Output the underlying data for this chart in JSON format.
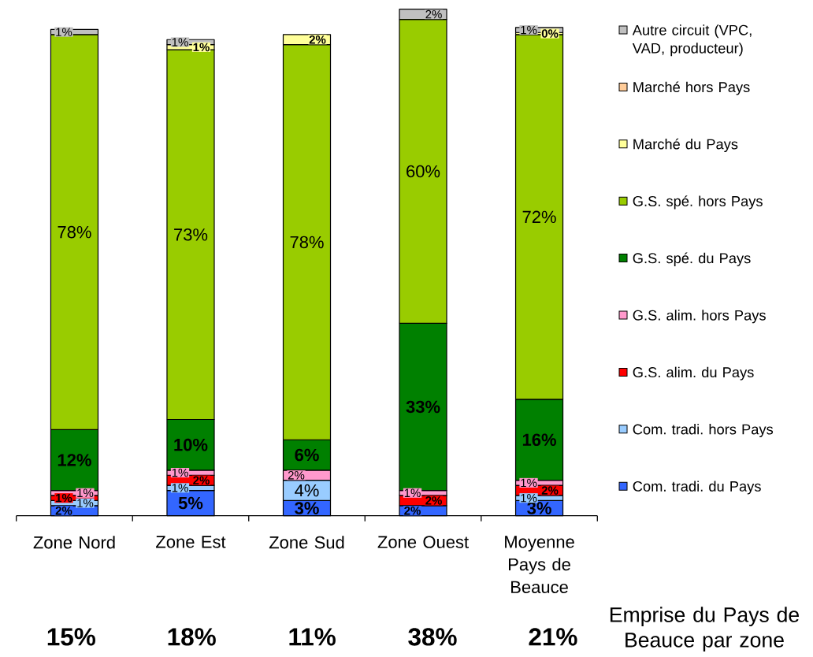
{
  "chart_data": {
    "type": "bar",
    "stacked": true,
    "categories": [
      "Zone Nord",
      "Zone Est",
      "Zone Sud",
      "Zone Ouest",
      "Moyenne Pays de Beauce"
    ],
    "ylim": [
      0,
      100
    ],
    "tick_labels": "x",
    "legend": "right",
    "series": [
      {
        "name": "Com. tradi. du Pays",
        "color": "#3366ff",
        "values": [
          2,
          5,
          3,
          2,
          3
        ],
        "value_labels": [
          "2%",
          "5%",
          "3%",
          "2%",
          "3%"
        ]
      },
      {
        "name": "Com. tradi. hors Pays",
        "color": "#99ccff",
        "values": [
          1,
          1,
          4,
          null,
          1
        ],
        "value_labels": [
          "1%",
          "1%",
          "4%",
          null,
          "1%"
        ]
      },
      {
        "name": "G.S. alim. du Pays",
        "color": "#ff0000",
        "values": [
          1,
          2,
          null,
          2,
          2
        ],
        "value_labels": [
          "1%",
          "2%",
          null,
          "2%",
          "2%"
        ]
      },
      {
        "name": "G.S. alim. hors Pays",
        "color": "#ff99cc",
        "values": [
          1,
          1,
          2,
          1,
          1
        ],
        "value_labels": [
          "1%",
          "1%",
          "2%",
          "1%",
          "1%"
        ]
      },
      {
        "name": "G.S. spé. du Pays",
        "color": "#008000",
        "values": [
          12,
          10,
          6,
          33,
          16
        ],
        "value_labels": [
          "12%",
          "10%",
          "6%",
          "33%",
          "16%"
        ]
      },
      {
        "name": "G.S. spé. hors Pays",
        "color": "#99cc00",
        "values": [
          78,
          73,
          78,
          60,
          72
        ],
        "value_labels": [
          "78%",
          "73%",
          "78%",
          "60%",
          "72%"
        ]
      },
      {
        "name": "Marché du Pays",
        "color": "#ffff99",
        "values": [
          null,
          1,
          2,
          null,
          0.4
        ],
        "value_labels": [
          null,
          "1%",
          "2%",
          null,
          "0%"
        ]
      },
      {
        "name": "Marché hors Pays",
        "color": "#ffcc99",
        "values": [
          null,
          null,
          null,
          null,
          null
        ]
      },
      {
        "name": "Autre circuit (VPC, VAD, producteur)",
        "color": "#c0c0c0",
        "values": [
          1,
          1,
          null,
          2,
          1
        ],
        "value_labels": [
          "1%",
          "1%",
          null,
          "2%",
          "1%"
        ]
      }
    ],
    "annotations": [
      "15%",
      "18%",
      "11%",
      "38%",
      "21%",
      "Emprise du Pays de Beauce par zone"
    ]
  }
}
